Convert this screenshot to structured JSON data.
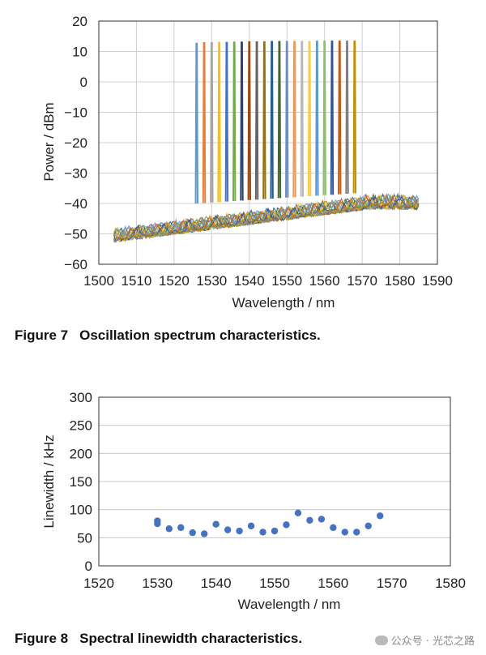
{
  "chart_data": [
    {
      "type": "line",
      "caption_number": "Figure 7",
      "caption_text": "Oscillation spectrum characteristics.",
      "xlabel": "Wavelength / nm",
      "ylabel": "Power / dBm",
      "xlim": [
        1500,
        1590
      ],
      "ylim": [
        -60,
        20
      ],
      "xticks": [
        1500,
        1510,
        1520,
        1530,
        1540,
        1550,
        1560,
        1570,
        1580,
        1590
      ],
      "yticks": [
        20,
        10,
        0,
        -10,
        -20,
        -30,
        -40,
        -50,
        -60
      ],
      "grid": true,
      "legend": "none",
      "noise_floor_x_range": [
        1504,
        1585
      ],
      "series": [
        {
          "peak_x": 1526.0,
          "peak_y": 12.6,
          "color": "#5a9bd5"
        },
        {
          "peak_x": 1528.0,
          "peak_y": 12.8,
          "color": "#ed7d31"
        },
        {
          "peak_x": 1530.0,
          "peak_y": 12.8,
          "color": "#a5a5a5"
        },
        {
          "peak_x": 1532.0,
          "peak_y": 12.9,
          "color": "#ffc000"
        },
        {
          "peak_x": 1534.0,
          "peak_y": 12.9,
          "color": "#4472c4"
        },
        {
          "peak_x": 1536.0,
          "peak_y": 13.0,
          "color": "#70ad47"
        },
        {
          "peak_x": 1538.0,
          "peak_y": 13.0,
          "color": "#264478"
        },
        {
          "peak_x": 1540.0,
          "peak_y": 13.1,
          "color": "#9e480e"
        },
        {
          "peak_x": 1542.0,
          "peak_y": 13.1,
          "color": "#636363"
        },
        {
          "peak_x": 1544.0,
          "peak_y": 13.1,
          "color": "#997300"
        },
        {
          "peak_x": 1546.0,
          "peak_y": 13.2,
          "color": "#255e91"
        },
        {
          "peak_x": 1548.0,
          "peak_y": 13.2,
          "color": "#43682b"
        },
        {
          "peak_x": 1550.0,
          "peak_y": 13.2,
          "color": "#698ed0"
        },
        {
          "peak_x": 1552.0,
          "peak_y": 13.2,
          "color": "#f1975a"
        },
        {
          "peak_x": 1554.0,
          "peak_y": 13.2,
          "color": "#b7b7b7"
        },
        {
          "peak_x": 1556.0,
          "peak_y": 13.2,
          "color": "#ffcd33"
        },
        {
          "peak_x": 1558.0,
          "peak_y": 13.3,
          "color": "#5b9bd5"
        },
        {
          "peak_x": 1560.0,
          "peak_y": 13.3,
          "color": "#8cc168"
        },
        {
          "peak_x": 1562.0,
          "peak_y": 13.3,
          "color": "#2f5597"
        },
        {
          "peak_x": 1564.0,
          "peak_y": 13.3,
          "color": "#c55a11"
        },
        {
          "peak_x": 1566.0,
          "peak_y": 13.3,
          "color": "#7f7f7f"
        },
        {
          "peak_x": 1568.0,
          "peak_y": 13.3,
          "color": "#bf9000"
        }
      ]
    },
    {
      "type": "scatter",
      "caption_number": "Figure 8",
      "caption_text": "Spectral linewidth characteristics.",
      "xlabel": "Wavelength / nm",
      "ylabel": "Linewidth / kHz",
      "xlim": [
        1520,
        1580
      ],
      "ylim": [
        0,
        300
      ],
      "xticks": [
        1520,
        1530,
        1540,
        1550,
        1560,
        1570,
        1580
      ],
      "yticks": [
        300,
        250,
        200,
        150,
        100,
        50,
        0
      ],
      "grid": true,
      "legend": "none",
      "marker_color": "#4472c4",
      "points": [
        {
          "x": 1530,
          "y": 80
        },
        {
          "x": 1530,
          "y": 75
        },
        {
          "x": 1532,
          "y": 66
        },
        {
          "x": 1534,
          "y": 68
        },
        {
          "x": 1536,
          "y": 59
        },
        {
          "x": 1538,
          "y": 57
        },
        {
          "x": 1540,
          "y": 74
        },
        {
          "x": 1542,
          "y": 64
        },
        {
          "x": 1544,
          "y": 62
        },
        {
          "x": 1546,
          "y": 71
        },
        {
          "x": 1548,
          "y": 60
        },
        {
          "x": 1550,
          "y": 62
        },
        {
          "x": 1552,
          "y": 73
        },
        {
          "x": 1554,
          "y": 94
        },
        {
          "x": 1556,
          "y": 81
        },
        {
          "x": 1558,
          "y": 83
        },
        {
          "x": 1560,
          "y": 68
        },
        {
          "x": 1562,
          "y": 60
        },
        {
          "x": 1564,
          "y": 60
        },
        {
          "x": 1566,
          "y": 71
        },
        {
          "x": 1568,
          "y": 89
        }
      ]
    }
  ],
  "watermark": {
    "text": "公众号 · 光芯之路"
  }
}
